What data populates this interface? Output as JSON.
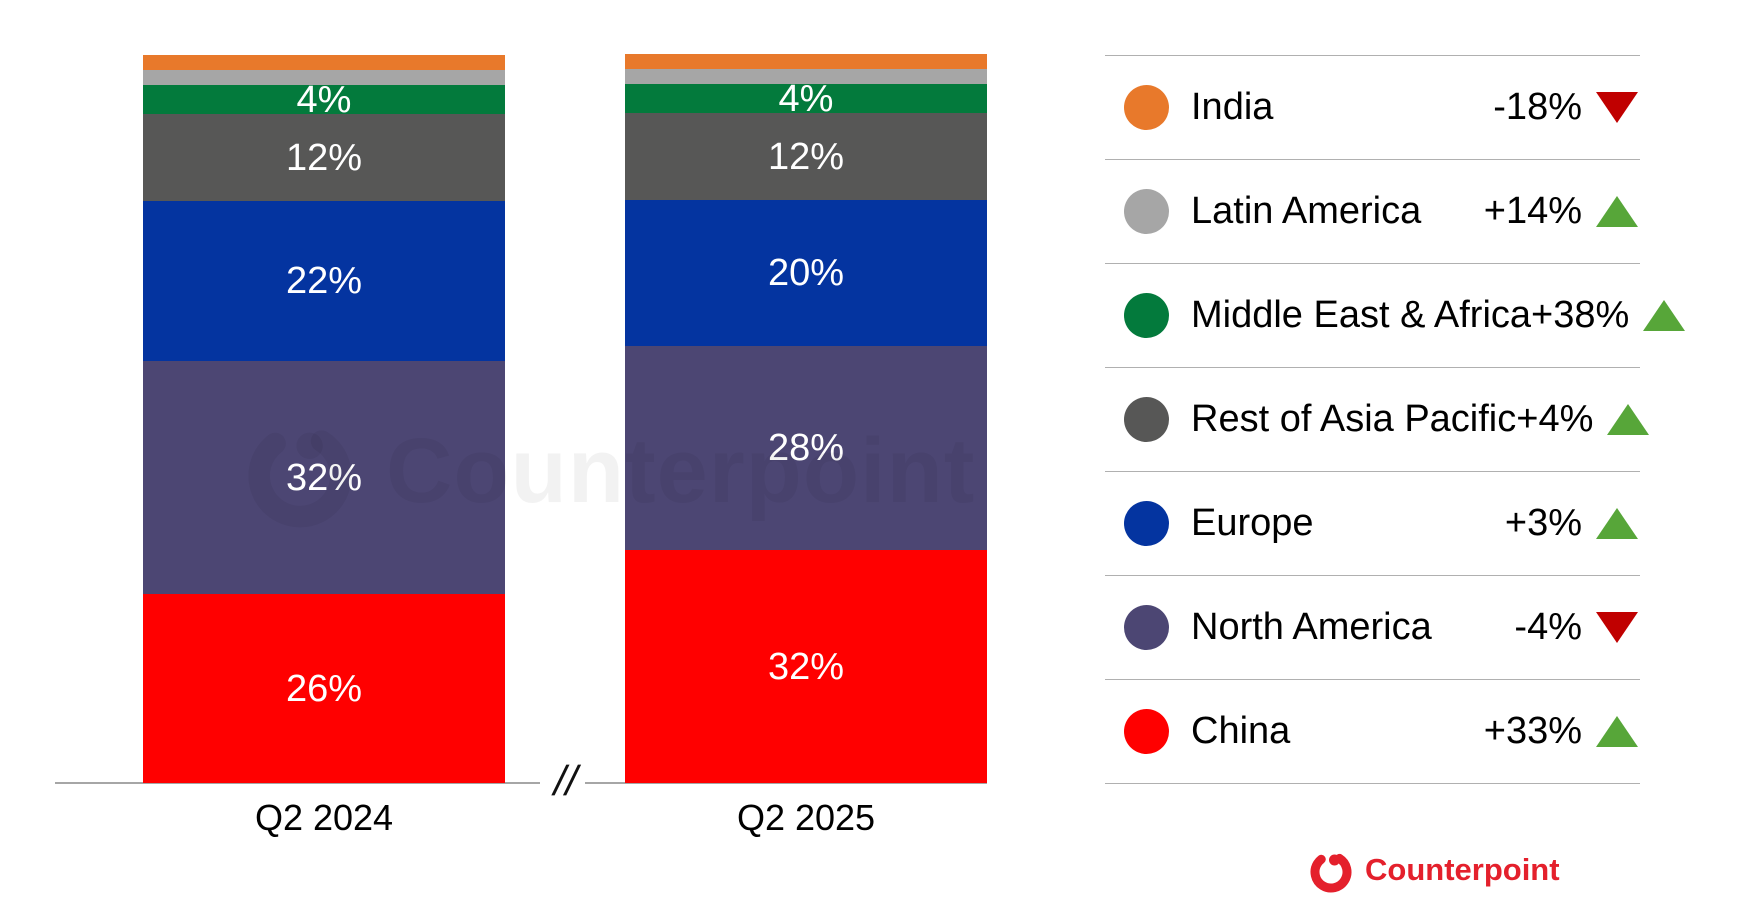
{
  "chart_data": {
    "type": "bar",
    "stacked": true,
    "title": "",
    "categories": [
      "Q2 2024",
      "Q2 2025"
    ],
    "unit": "%",
    "ylim": [
      0,
      100
    ],
    "grid": false,
    "legend_position": "right",
    "axis_break_symbol": "//",
    "up_color": "#57a639",
    "down_color": "#c00000",
    "series": [
      {
        "name": "India",
        "color": "#e8792b",
        "values": [
          2,
          2
        ],
        "bar_labels": [
          "",
          ""
        ],
        "change": "-18%",
        "direction": "down"
      },
      {
        "name": "Latin America",
        "color": "#a6a6a6",
        "values": [
          2,
          2
        ],
        "bar_labels": [
          "",
          ""
        ],
        "change": "+14%",
        "direction": "up"
      },
      {
        "name": "Middle East & Africa",
        "color": "#037a3c",
        "values": [
          4,
          4
        ],
        "bar_labels": [
          "4%",
          "4%"
        ],
        "change": "+38%",
        "direction": "up"
      },
      {
        "name": "Rest of Asia Pacific",
        "color": "#575756",
        "values": [
          12,
          12
        ],
        "bar_labels": [
          "12%",
          "12%"
        ],
        "change": "+4%",
        "direction": "up"
      },
      {
        "name": "Europe",
        "color": "#0434a0",
        "values": [
          22,
          20
        ],
        "bar_labels": [
          "22%",
          "20%"
        ],
        "change": "+3%",
        "direction": "up"
      },
      {
        "name": "North America",
        "color": "#4c4673",
        "values": [
          32,
          28
        ],
        "bar_labels": [
          "32%",
          "28%"
        ],
        "change": "-4%",
        "direction": "down"
      },
      {
        "name": "China",
        "color": "#ff0000",
        "values": [
          26,
          32
        ],
        "bar_labels": [
          "26%",
          "32%"
        ],
        "change": "+33%",
        "direction": "up"
      }
    ]
  },
  "watermark": {
    "text": "Counterpoint"
  },
  "footer_logo": {
    "text": "Counterpoint",
    "color": "#e4202c"
  }
}
